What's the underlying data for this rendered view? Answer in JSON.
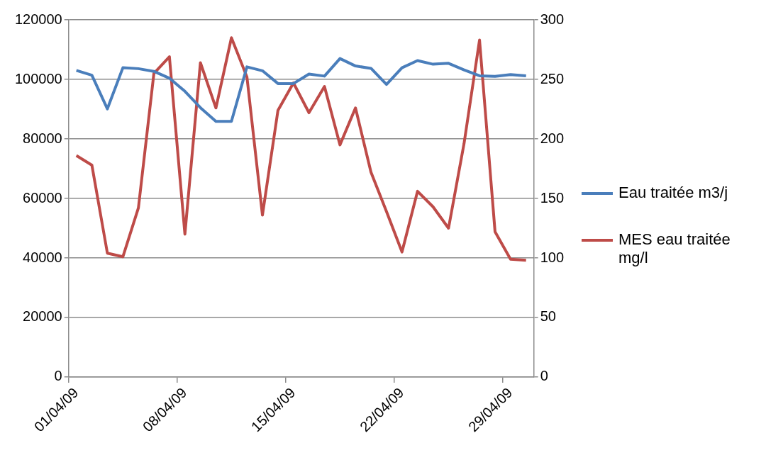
{
  "chart_data": {
    "type": "line",
    "categories": [
      "01/04/09",
      null,
      null,
      null,
      null,
      null,
      null,
      "08/04/09",
      null,
      null,
      null,
      null,
      null,
      null,
      "15/04/09",
      null,
      null,
      null,
      null,
      null,
      null,
      "22/04/09",
      null,
      null,
      null,
      null,
      null,
      null,
      "29/04/09",
      null
    ],
    "series": [
      {
        "name": "Eau traitée m3/j",
        "color": "#4a7ebb",
        "values": [
          103000,
          101400,
          90100,
          103900,
          103600,
          102700,
          100400,
          96000,
          90500,
          85900,
          85900,
          104200,
          102900,
          98600,
          98600,
          101800,
          101100,
          107000,
          104500,
          103700,
          98300,
          103900,
          106300,
          105100,
          105400,
          103200,
          101200,
          101000,
          101600,
          101200
        ]
      },
      {
        "name": "MES eau traitée mg/l",
        "color": "#be4b48",
        "axis": "y2",
        "values": [
          186,
          178,
          104,
          101,
          142,
          255,
          269,
          120,
          264,
          226,
          285,
          252,
          136,
          224,
          247,
          222,
          244,
          195,
          226,
          172,
          139,
          105,
          156,
          143,
          125,
          196,
          283,
          122,
          99,
          98
        ]
      }
    ],
    "ylim": [
      0,
      120000
    ],
    "yticks": [
      0,
      20000,
      40000,
      60000,
      80000,
      100000,
      120000
    ],
    "y2lim": [
      0,
      300
    ],
    "y2ticks": [
      0,
      50,
      100,
      150,
      200,
      250,
      300
    ],
    "grid": "y",
    "legend": "right",
    "marker": "none",
    "line_style": "solid"
  }
}
